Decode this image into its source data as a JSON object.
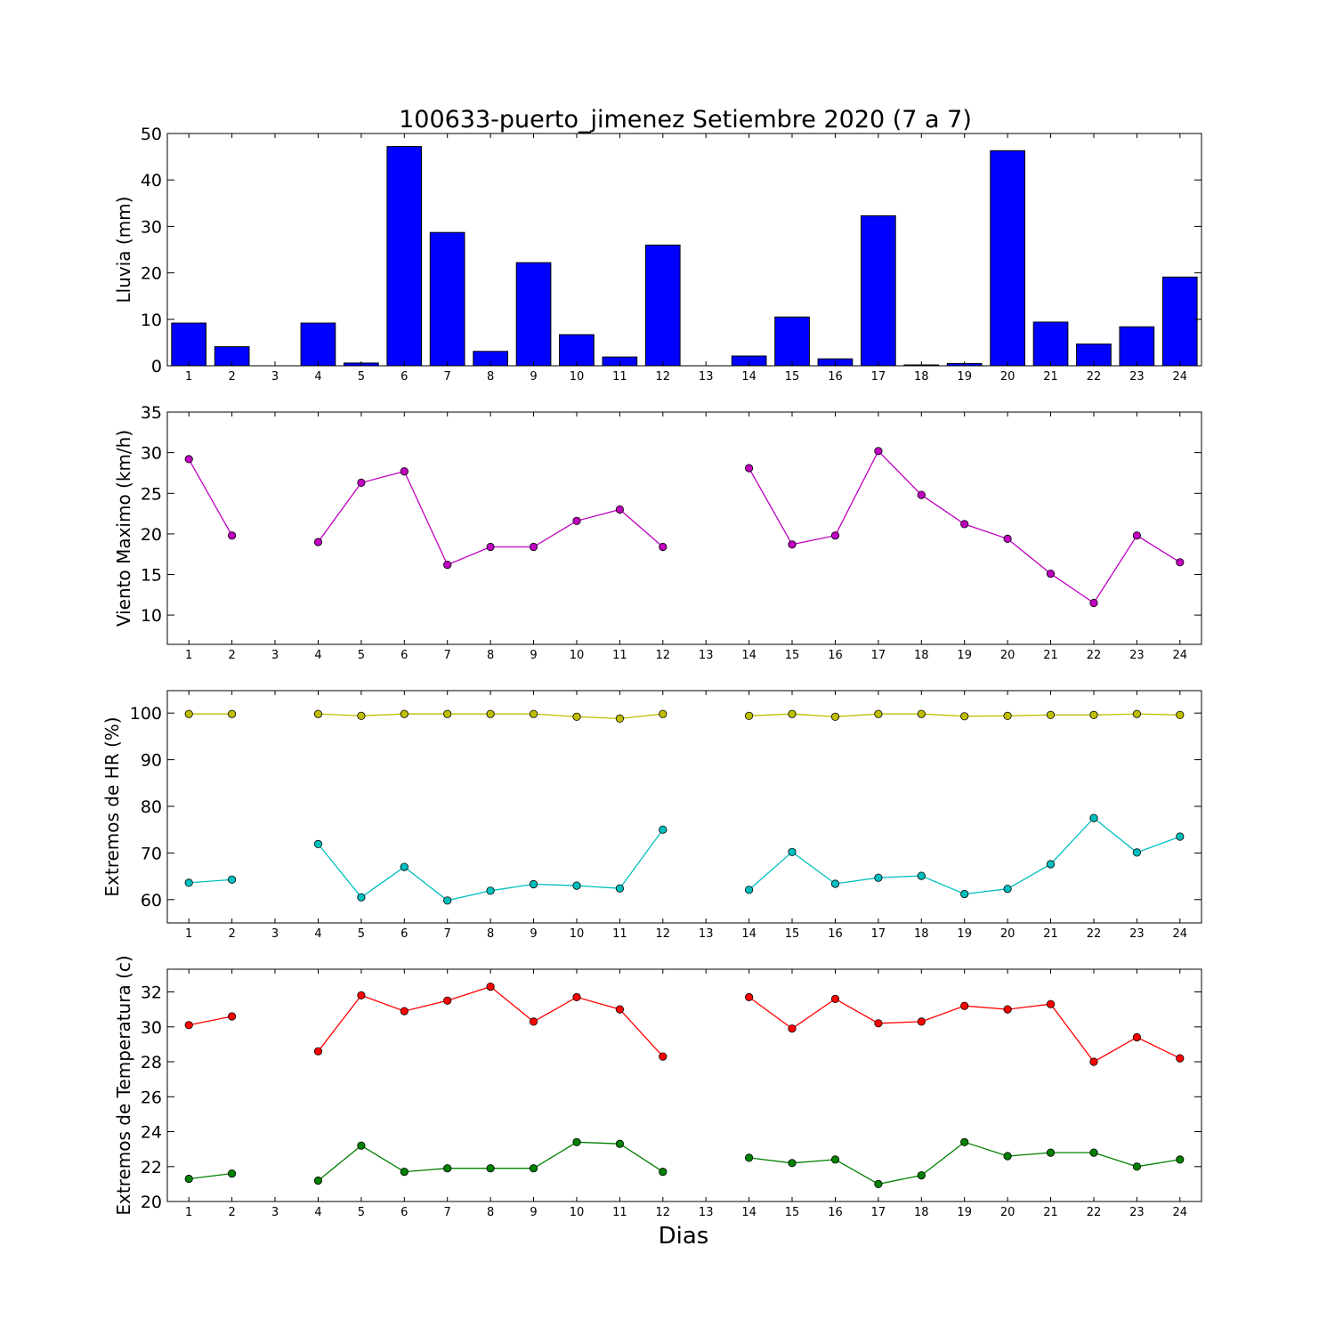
{
  "title": "100633-puerto_jimenez Setiembre 2020  (7 a 7)",
  "xlabel": "Dias",
  "chart_data": [
    {
      "type": "bar",
      "ylabel": "Lluvia (mm)",
      "categories": [
        "1",
        "2",
        "3",
        "4",
        "5",
        "6",
        "7",
        "8",
        "9",
        "10",
        "11",
        "12",
        "13",
        "14",
        "15",
        "16",
        "17",
        "18",
        "19",
        "20",
        "21",
        "22",
        "23",
        "24"
      ],
      "ylim": [
        0,
        50
      ],
      "yticks": [
        "0",
        "10",
        "20",
        "30",
        "40",
        "50"
      ],
      "color": "#0000ff",
      "values": [
        9.2,
        4.1,
        0,
        9.2,
        0.6,
        47.2,
        28.7,
        3.1,
        22.2,
        6.7,
        1.9,
        26.0,
        0,
        2.1,
        10.5,
        1.5,
        32.3,
        0.2,
        0.5,
        46.3,
        9.4,
        4.7,
        8.4,
        19.1
      ]
    },
    {
      "type": "line",
      "ylabel": "Viento Maximo (km/h)",
      "categories": [
        "1",
        "2",
        "3",
        "4",
        "5",
        "6",
        "7",
        "8",
        "9",
        "10",
        "11",
        "12",
        "13",
        "14",
        "15",
        "16",
        "17",
        "18",
        "19",
        "20",
        "21",
        "22",
        "23",
        "24"
      ],
      "ylim": [
        6.4,
        35
      ],
      "yticks": [
        "10",
        "15",
        "20",
        "25",
        "30",
        "35"
      ],
      "series": [
        {
          "color": "#bf00bf",
          "values": [
            29.2,
            19.8,
            null,
            19.0,
            26.3,
            27.7,
            16.2,
            18.4,
            18.4,
            21.6,
            23.0,
            18.4,
            null,
            28.1,
            18.7,
            19.8,
            30.2,
            24.8,
            21.2,
            19.4,
            15.1,
            11.5,
            19.8,
            16.5
          ]
        }
      ]
    },
    {
      "type": "line",
      "ylabel": "Extremos de HR (%)",
      "categories": [
        "1",
        "2",
        "3",
        "4",
        "5",
        "6",
        "7",
        "8",
        "9",
        "10",
        "11",
        "12",
        "13",
        "14",
        "15",
        "16",
        "17",
        "18",
        "19",
        "20",
        "21",
        "22",
        "23",
        "24"
      ],
      "ylim": [
        55,
        104.8
      ],
      "yticks": [
        "60",
        "70",
        "80",
        "90",
        "100"
      ],
      "series": [
        {
          "color": "#bfbf00",
          "values": [
            99.8,
            99.8,
            null,
            99.8,
            99.4,
            99.8,
            99.8,
            99.8,
            99.8,
            99.2,
            98.8,
            99.8,
            null,
            99.4,
            99.8,
            99.2,
            99.8,
            99.8,
            99.3,
            99.4,
            99.6,
            99.6,
            99.8,
            99.6
          ]
        },
        {
          "color": "#00bfbf",
          "values": [
            63.6,
            64.3,
            null,
            71.9,
            60.5,
            67.0,
            59.8,
            61.9,
            63.3,
            63.0,
            62.4,
            75.0,
            null,
            62.1,
            70.2,
            63.4,
            64.7,
            65.1,
            61.2,
            62.3,
            67.6,
            77.5,
            70.1,
            73.5
          ]
        }
      ]
    },
    {
      "type": "line",
      "ylabel": "Extremos de Temperatura (c)",
      "categories": [
        "1",
        "2",
        "3",
        "4",
        "5",
        "6",
        "7",
        "8",
        "9",
        "10",
        "11",
        "12",
        "13",
        "14",
        "15",
        "16",
        "17",
        "18",
        "19",
        "20",
        "21",
        "22",
        "23",
        "24"
      ],
      "ylim": [
        20,
        33.3
      ],
      "yticks": [
        "20",
        "22",
        "24",
        "26",
        "28",
        "30",
        "32"
      ],
      "series": [
        {
          "color": "#ff0000",
          "values": [
            30.1,
            30.6,
            null,
            28.6,
            31.8,
            30.9,
            31.5,
            32.3,
            30.3,
            31.7,
            31.0,
            28.3,
            null,
            31.7,
            29.9,
            31.6,
            30.2,
            30.3,
            31.2,
            31.0,
            31.3,
            28.0,
            29.4,
            28.2
          ]
        },
        {
          "color": "#008000",
          "values": [
            21.3,
            21.6,
            null,
            21.2,
            23.2,
            21.7,
            21.9,
            21.9,
            21.9,
            23.4,
            23.3,
            21.7,
            null,
            22.5,
            22.2,
            22.4,
            21.0,
            21.5,
            23.4,
            22.6,
            22.8,
            22.8,
            22.0,
            22.4
          ]
        }
      ]
    }
  ]
}
